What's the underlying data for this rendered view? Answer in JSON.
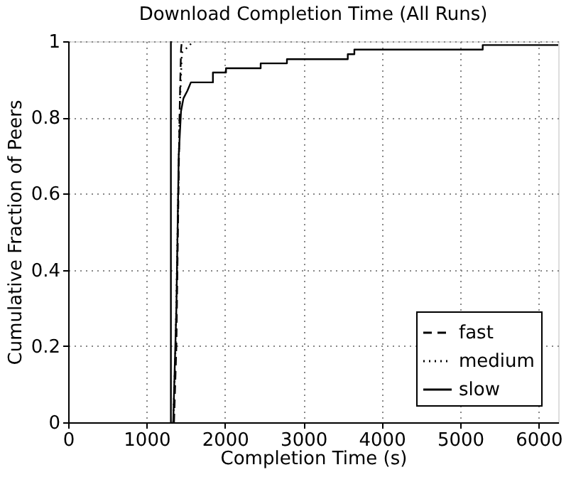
{
  "chart_data": {
    "type": "line",
    "title": "Download Completion Time (All Runs)",
    "xlabel": "Completion Time (s)",
    "ylabel": "Cumulative Fraction of Peers",
    "xlim": [
      0,
      6250
    ],
    "xticks": [
      0,
      1000,
      2000,
      3000,
      4000,
      5000,
      6000
    ],
    "ylim": [
      0,
      1
    ],
    "yticks": [
      0,
      0.2,
      0.4,
      0.6,
      0.8,
      1
    ],
    "grid": true,
    "legend": "bottom right",
    "series": [
      {
        "name": "fast",
        "color": "#000000",
        "line_style": "dashed",
        "x": [
          1350,
          1380,
          1400,
          1420,
          1430,
          1440,
          1450
        ],
        "values": [
          0,
          0.2,
          0.5,
          0.8,
          0.9,
          0.98,
          1
        ]
      },
      {
        "name": "medium",
        "color": "#000000",
        "line_style": "dotted",
        "x": [
          1340,
          1370,
          1395,
          1420,
          1450,
          1500,
          1600
        ],
        "values": [
          0,
          0.2,
          0.5,
          0.8,
          0.97,
          0.98,
          1
        ]
      },
      {
        "name": "slow",
        "color": "#000000",
        "line_style": "solid",
        "x": [
          1340,
          1380,
          1410,
          1439,
          1470,
          1520,
          1565,
          1846,
          1846,
          2013,
          2013,
          2455,
          2455,
          2790,
          2790,
          3566,
          3566,
          3650,
          3650,
          5287,
          5287,
          6250
        ],
        "values": [
          0,
          0.3,
          0.7,
          0.816,
          0.85,
          0.87,
          0.892,
          0.892,
          0.918,
          0.918,
          0.929,
          0.929,
          0.942,
          0.942,
          0.953,
          0.953,
          0.966,
          0.966,
          0.978,
          0.978,
          0.99,
          0.99
        ]
      }
    ],
    "ref_lines": [
      {
        "axis": "x",
        "value": 1310,
        "color": "#000000",
        "line_style": "solid"
      }
    ]
  }
}
